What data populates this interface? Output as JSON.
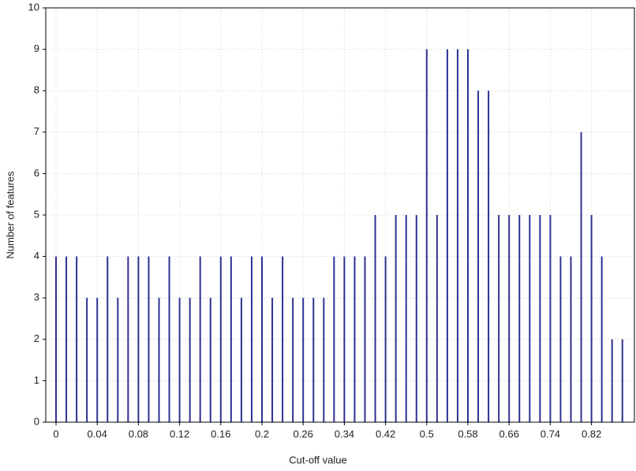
{
  "chart_data": {
    "type": "bar",
    "x_label": "Cut-off value",
    "y_label": "Number of features",
    "categories": [
      "0",
      null,
      null,
      null,
      "0.04",
      null,
      null,
      null,
      "0.08",
      null,
      null,
      null,
      "0.12",
      null,
      null,
      null,
      "0.16",
      null,
      null,
      null,
      "0.2",
      null,
      null,
      null,
      "0.26",
      null,
      null,
      null,
      "0.34",
      null,
      null,
      null,
      "0.42",
      null,
      null,
      null,
      "0.5",
      null,
      null,
      null,
      "0.58",
      null,
      null,
      null,
      "0.66",
      null,
      null,
      null,
      "0.74",
      null,
      null,
      null,
      "0.82",
      null,
      null,
      null
    ],
    "values": [
      4,
      4,
      4,
      3,
      3,
      4,
      3,
      4,
      4,
      4,
      3,
      4,
      3,
      3,
      4,
      3,
      4,
      4,
      3,
      4,
      4,
      3,
      4,
      3,
      3,
      3,
      3,
      4,
      4,
      4,
      4,
      5,
      4,
      5,
      5,
      5,
      9,
      5,
      9,
      9,
      9,
      8,
      8,
      5,
      5,
      5,
      5,
      5,
      5,
      4,
      4,
      7,
      5,
      4,
      2,
      2
    ],
    "color": "#2e3192",
    "ylim": [
      0,
      10
    ],
    "yticks": [
      0,
      1,
      2,
      3,
      4,
      5,
      6,
      7,
      8,
      9,
      10
    ],
    "grid": true
  }
}
